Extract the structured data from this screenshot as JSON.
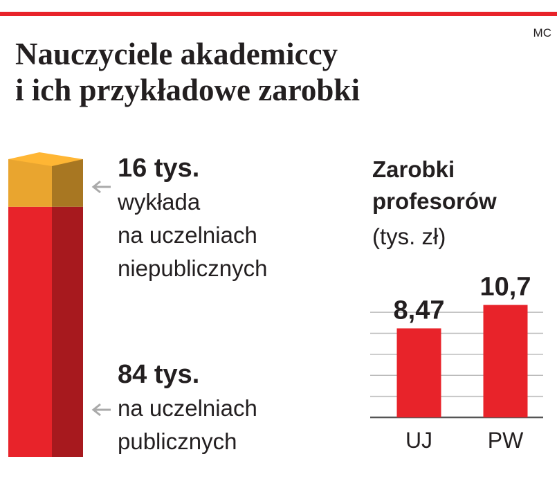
{
  "header": {
    "title": "Nauczyciele akademiccy\ni ich przykładowe zarobki",
    "credit": "MC"
  },
  "chart_data": [
    {
      "type": "stacked-bar",
      "series": [
        {
          "name": "wykłada\nna uczelniach\nniepublicznych",
          "color": "#e9a52f",
          "values": [
            16
          ],
          "value_labels": [
            "16 tys."
          ]
        },
        {
          "name": "na uczelniach\npublicznych",
          "color": "#e8232a",
          "values": [
            84
          ],
          "value_labels": [
            "84 tys."
          ]
        }
      ]
    },
    {
      "type": "bar",
      "title": "Zarobki\nprofesorów",
      "subtitle": "(tys. zł)",
      "categories": [
        "UJ",
        "PW"
      ],
      "values": [
        8.47,
        10.7
      ],
      "value_labels": [
        "8,47",
        "10,7"
      ],
      "color": "#e8232a",
      "ylim": [
        0,
        11
      ],
      "yticks": [
        0,
        2,
        4,
        6,
        8,
        10
      ],
      "grid": true
    }
  ]
}
